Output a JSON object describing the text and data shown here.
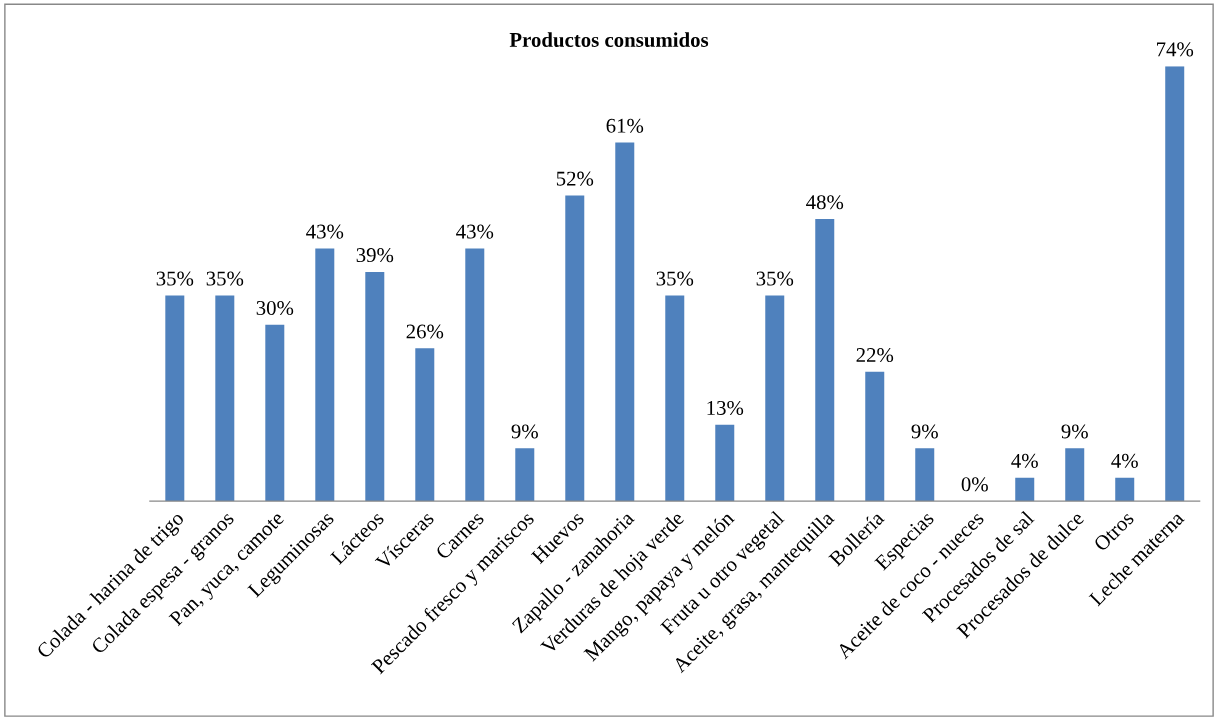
{
  "chart_data": {
    "type": "bar",
    "title": "Productos consumidos",
    "categories": [
      "Colada - harina de trigo",
      "Colada espesa - granos",
      "Pan, yuca, camote",
      "Leguminosas",
      "Lácteos",
      "Vísceras",
      "Carnes",
      "Pescado fresco y mariscos",
      "Huevos",
      "Zapallo - zanahoria",
      "Verduras de hoja verde",
      "Mango, papaya y melón",
      "Fruta u otro vegetal",
      "Aceite, grasa, mantequilla",
      "Bollería",
      "Especias",
      "Aceite de coco - nueces",
      "Procesados de sal",
      "Procesados de dulce",
      "Otros",
      "Leche materna"
    ],
    "values": [
      35,
      35,
      30,
      43,
      39,
      26,
      43,
      9,
      52,
      61,
      35,
      13,
      35,
      48,
      22,
      9,
      0,
      4,
      9,
      4,
      74
    ],
    "value_labels": [
      "35%",
      "35%",
      "30%",
      "43%",
      "39%",
      "26%",
      "43%",
      "9%",
      "52%",
      "61%",
      "35%",
      "13%",
      "35%",
      "48%",
      "22%",
      "9%",
      "0%",
      "4%",
      "9%",
      "4%",
      "74%"
    ],
    "color": "#4f81bd",
    "grid": false,
    "legend": false
  }
}
